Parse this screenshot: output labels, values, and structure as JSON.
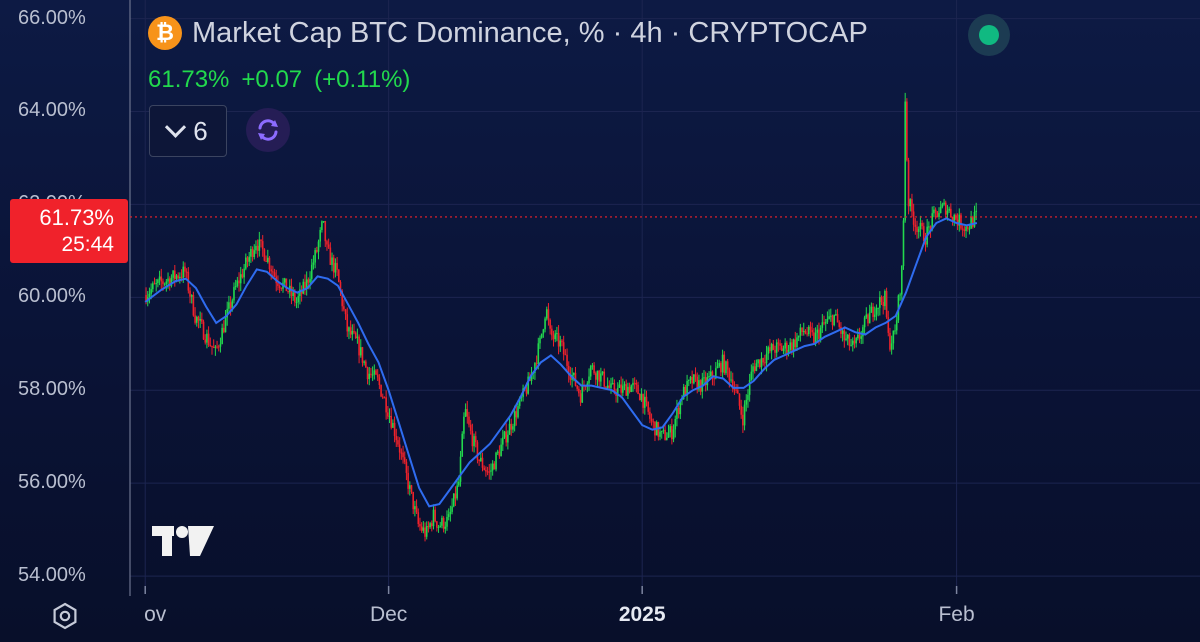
{
  "header": {
    "title": "Market Cap BTC Dominance, % · 4h · CRYPTOCAP",
    "btc_symbol": "₿",
    "price": "61.73%",
    "change": "+0.07",
    "change_pct": "(+0.11%)",
    "change_color": "#22d94d"
  },
  "toolbar": {
    "indicators_count": "6",
    "refresh_icon": "refresh-icon"
  },
  "price_tag": {
    "price": "61.73%",
    "countdown": "25:44",
    "color": "#f0222b"
  },
  "colors": {
    "up": "#22d94d",
    "down": "#f0222b",
    "ma": "#2f6cf0"
  },
  "chart_data": {
    "type": "line",
    "title": "Market Cap BTC Dominance, % · 4h · CRYPTOCAP",
    "xlabel": "",
    "ylabel": "",
    "ylim": [
      53.7,
      66.4
    ],
    "ytick_labels": [
      "66.00%",
      "64.00%",
      "62.00%",
      "60.00%",
      "58.00%",
      "56.00%",
      "54.00%"
    ],
    "ytick_values": [
      66,
      64,
      62,
      60,
      58,
      56,
      54
    ],
    "x_labels": [
      {
        "text": "ov",
        "day": 0,
        "bold": false
      },
      {
        "text": "Dec",
        "day": 24,
        "bold": false
      },
      {
        "text": "2025",
        "day": 49,
        "bold": true
      },
      {
        "text": "Feb",
        "day": 80,
        "bold": false
      }
    ],
    "xlim": [
      -1.5,
      104
    ],
    "current_price": 61.73,
    "series": [
      {
        "name": "",
        "points": [
          [
            0,
            60.05
          ],
          [
            1.5,
            60.3
          ],
          [
            3,
            60.45
          ],
          [
            4,
            60.55
          ],
          [
            5,
            59.6
          ],
          [
            6,
            59.2
          ],
          [
            7,
            58.8
          ],
          [
            8,
            59.5
          ],
          [
            9,
            60.2
          ],
          [
            10,
            60.7
          ],
          [
            11,
            61.2
          ],
          [
            12,
            60.9
          ],
          [
            13,
            60.4
          ],
          [
            14,
            60.2
          ],
          [
            15,
            59.9
          ],
          [
            16,
            60.3
          ],
          [
            17,
            61.0
          ],
          [
            17.6,
            61.6
          ],
          [
            18,
            61.0
          ],
          [
            19,
            60.5
          ],
          [
            20,
            59.3
          ],
          [
            21,
            59.0
          ],
          [
            22,
            58.4
          ],
          [
            23,
            58.2
          ],
          [
            24,
            57.6
          ],
          [
            25,
            56.9
          ],
          [
            26,
            56.0
          ],
          [
            27,
            55.1
          ],
          [
            27.8,
            54.9
          ],
          [
            28.5,
            55.3
          ],
          [
            29,
            55.1
          ],
          [
            30,
            55.2
          ],
          [
            31,
            56.0
          ],
          [
            31.6,
            57.6
          ],
          [
            32,
            57.2
          ],
          [
            33,
            56.5
          ],
          [
            34,
            56.2
          ],
          [
            35,
            56.7
          ],
          [
            36,
            57.2
          ],
          [
            37,
            57.7
          ],
          [
            38,
            58.2
          ],
          [
            39,
            59.0
          ],
          [
            39.6,
            59.8
          ],
          [
            40,
            59.2
          ],
          [
            41,
            59.0
          ],
          [
            42,
            58.4
          ],
          [
            43,
            57.9
          ],
          [
            44,
            58.5
          ],
          [
            45,
            58.3
          ],
          [
            46,
            58.0
          ],
          [
            47,
            58.0
          ],
          [
            48,
            58.1
          ],
          [
            49,
            57.9
          ],
          [
            50,
            57.3
          ],
          [
            51,
            57.0
          ],
          [
            52,
            57.1
          ],
          [
            53,
            57.9
          ],
          [
            54,
            58.2
          ],
          [
            55,
            58.1
          ],
          [
            56,
            58.3
          ],
          [
            57,
            58.6
          ],
          [
            58,
            58.2
          ],
          [
            59,
            57.4
          ],
          [
            60,
            58.5
          ],
          [
            61,
            58.7
          ],
          [
            62,
            58.9
          ],
          [
            63,
            58.9
          ],
          [
            64,
            59.0
          ],
          [
            65,
            59.3
          ],
          [
            66,
            59.1
          ],
          [
            67,
            59.4
          ],
          [
            68,
            59.6
          ],
          [
            69,
            59.1
          ],
          [
            70,
            58.9
          ],
          [
            71,
            59.4
          ],
          [
            72,
            59.8
          ],
          [
            73,
            60.0
          ],
          [
            73.4,
            59.0
          ],
          [
            74,
            59.2
          ],
          [
            74.8,
            60.8
          ],
          [
            75,
            64.4
          ],
          [
            75.3,
            62.1
          ],
          [
            76,
            61.6
          ],
          [
            77,
            61.3
          ],
          [
            78,
            61.8
          ],
          [
            79,
            61.95
          ],
          [
            80,
            61.7
          ],
          [
            81,
            61.5
          ],
          [
            82,
            61.73
          ]
        ]
      },
      {
        "name": "",
        "points": [
          [
            0,
            59.9
          ],
          [
            1.5,
            60.15
          ],
          [
            3,
            60.35
          ],
          [
            4,
            60.4
          ],
          [
            5,
            60.2
          ],
          [
            6,
            59.8
          ],
          [
            7,
            59.45
          ],
          [
            8,
            59.6
          ],
          [
            9,
            59.85
          ],
          [
            10,
            60.25
          ],
          [
            11,
            60.6
          ],
          [
            12,
            60.55
          ],
          [
            13,
            60.35
          ],
          [
            14,
            60.2
          ],
          [
            15,
            60.1
          ],
          [
            16,
            60.2
          ],
          [
            17,
            60.45
          ],
          [
            18,
            60.4
          ],
          [
            19,
            60.25
          ],
          [
            20,
            59.85
          ],
          [
            21,
            59.45
          ],
          [
            22,
            59.0
          ],
          [
            23,
            58.6
          ],
          [
            24,
            58.0
          ],
          [
            25,
            57.3
          ],
          [
            26,
            56.6
          ],
          [
            27,
            55.9
          ],
          [
            28,
            55.5
          ],
          [
            29,
            55.55
          ],
          [
            30,
            55.85
          ],
          [
            31,
            56.15
          ],
          [
            32,
            56.45
          ],
          [
            33,
            56.65
          ],
          [
            34,
            56.85
          ],
          [
            35,
            57.15
          ],
          [
            36,
            57.45
          ],
          [
            37,
            57.85
          ],
          [
            38,
            58.3
          ],
          [
            39,
            58.6
          ],
          [
            40,
            58.75
          ],
          [
            41,
            58.55
          ],
          [
            42,
            58.3
          ],
          [
            43,
            58.1
          ],
          [
            44,
            58.1
          ],
          [
            45,
            58.05
          ],
          [
            46,
            58.0
          ],
          [
            47,
            57.85
          ],
          [
            48,
            57.55
          ],
          [
            49,
            57.25
          ],
          [
            50,
            57.15
          ],
          [
            51,
            57.2
          ],
          [
            52,
            57.5
          ],
          [
            53,
            57.85
          ],
          [
            54,
            58.0
          ],
          [
            55,
            58.1
          ],
          [
            56,
            58.3
          ],
          [
            57,
            58.25
          ],
          [
            58,
            58.05
          ],
          [
            59,
            58.05
          ],
          [
            60,
            58.2
          ],
          [
            61,
            58.45
          ],
          [
            62,
            58.65
          ],
          [
            63,
            58.75
          ],
          [
            64,
            58.85
          ],
          [
            65,
            58.95
          ],
          [
            66,
            59.0
          ],
          [
            67,
            59.15
          ],
          [
            68,
            59.25
          ],
          [
            69,
            59.35
          ],
          [
            70,
            59.25
          ],
          [
            71,
            59.2
          ],
          [
            72,
            59.35
          ],
          [
            73,
            59.45
          ],
          [
            74,
            59.6
          ],
          [
            75,
            60.1
          ],
          [
            76,
            60.7
          ],
          [
            77,
            61.3
          ],
          [
            78,
            61.6
          ],
          [
            79,
            61.7
          ],
          [
            80,
            61.6
          ],
          [
            81,
            61.55
          ],
          [
            82,
            61.6
          ]
        ]
      }
    ]
  }
}
